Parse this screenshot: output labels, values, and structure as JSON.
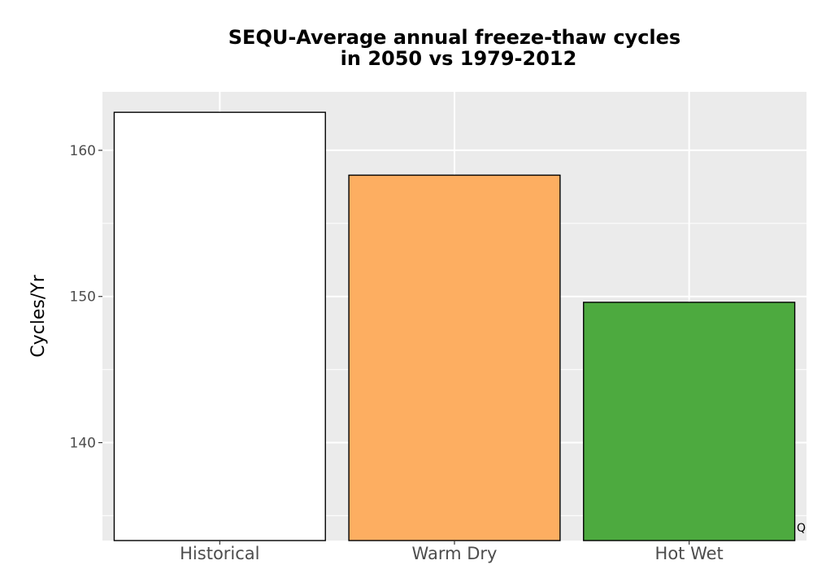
{
  "chart_data": {
    "type": "bar",
    "title_lines": [
      "SEQU-Average annual freeze-thaw cycles",
      "in 2050 vs 1979-2012"
    ],
    "xlabel": "",
    "ylabel": "Cycles/Yr",
    "categories": [
      "Historical",
      "Warm Dry",
      "Hot Wet"
    ],
    "values": [
      162.6,
      158.3,
      149.6
    ],
    "colors": [
      "#ffffff",
      "#fdae61",
      "#4daa3f"
    ],
    "ylim": [
      133.3,
      164
    ],
    "yticks": [
      140,
      150,
      160
    ],
    "grid": true,
    "panel_background": "#ebebeb",
    "corner_mark": "Q"
  }
}
